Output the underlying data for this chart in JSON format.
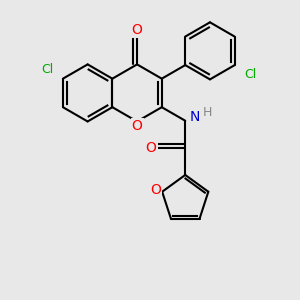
{
  "bg_color": "#e8e8e8",
  "bond_color": "#000000",
  "bond_width": 1.5,
  "atom_colors": {
    "O": "#ff0000",
    "N": "#0000cc",
    "Cl": "#00aa00",
    "H": "#888888"
  },
  "font_size": 9,
  "figsize": [
    3.0,
    3.0
  ],
  "dpi": 100,
  "xlim": [
    -1.0,
    6.5
  ],
  "ylim": [
    -3.5,
    3.5
  ]
}
